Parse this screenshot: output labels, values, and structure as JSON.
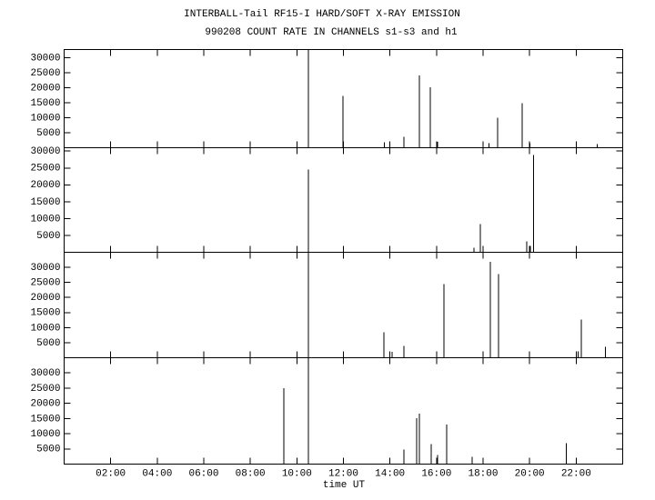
{
  "chart_data": [
    {
      "type": "bar",
      "title": "INTERBALL-Tail RF15-I HARD/SOFT X-RAY EMISSION",
      "subtitle": "990208  COUNT RATE IN CHANNELS s1-s3 and h1",
      "x": [
        10.49,
        11.98,
        13.75,
        14.6,
        15.26,
        15.73,
        16.05,
        18.25,
        18.63,
        19.69,
        20.02,
        22.9
      ],
      "values": [
        32700,
        17200,
        1800,
        3600,
        24100,
        20200,
        2000,
        1500,
        10000,
        14800,
        1500,
        1200
      ],
      "color": "#000000",
      "xlim": [
        0,
        24
      ],
      "ylim": [
        0,
        32700
      ],
      "yticks": [
        5000,
        10000,
        15000,
        20000,
        25000,
        30000
      ]
    },
    {
      "type": "bar",
      "x": [
        10.49,
        17.6,
        17.89,
        19.88,
        20.04,
        20.16
      ],
      "values": [
        24500,
        1300,
        8300,
        3200,
        1900,
        28800
      ],
      "color": "#000000",
      "xlim": [
        0,
        24
      ],
      "ylim": [
        0,
        31000
      ],
      "yticks": [
        5000,
        10000,
        15000,
        20000,
        25000,
        30000
      ]
    },
    {
      "type": "bar",
      "x": [
        10.49,
        13.74,
        14.09,
        14.6,
        16.32,
        18.32,
        18.67,
        22.08,
        22.23,
        23.25
      ],
      "values": [
        35000,
        8400,
        2000,
        3900,
        24400,
        31900,
        27700,
        2100,
        12700,
        3600
      ],
      "color": "#000000",
      "xlim": [
        0,
        24
      ],
      "ylim": [
        0,
        35000
      ],
      "yticks": [
        5000,
        10000,
        15000,
        20000,
        25000,
        30000
      ]
    },
    {
      "type": "bar",
      "xlabel": "time UT",
      "x": [
        9.43,
        10.49,
        14.6,
        15.15,
        15.26,
        15.77,
        16.05,
        16.44,
        17.53,
        21.57
      ],
      "values": [
        25000,
        35000,
        4800,
        15100,
        16600,
        6600,
        3000,
        13000,
        2400,
        6900
      ],
      "color": "#000000",
      "xlim": [
        0,
        24
      ],
      "ylim": [
        0,
        35000
      ],
      "yticks": [
        5000,
        10000,
        15000,
        20000,
        25000,
        30000
      ],
      "xticks": [
        {
          "value": 2,
          "label": "02:00"
        },
        {
          "value": 4,
          "label": "04:00"
        },
        {
          "value": 6,
          "label": "06:00"
        },
        {
          "value": 8,
          "label": "08:00"
        },
        {
          "value": 10,
          "label": "10:00"
        },
        {
          "value": 12,
          "label": "12:00"
        },
        {
          "value": 14,
          "label": "14:00"
        },
        {
          "value": 16,
          "label": "16:00"
        },
        {
          "value": 18,
          "label": "18:00"
        },
        {
          "value": 20,
          "label": "20:00"
        },
        {
          "value": 22,
          "label": "22:00"
        }
      ]
    }
  ]
}
